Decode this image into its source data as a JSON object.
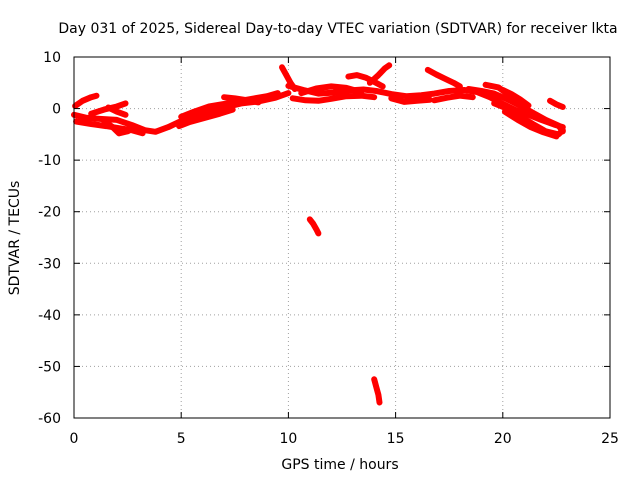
{
  "chart_data": {
    "type": "scatter",
    "title": "Day 031 of 2025, Sidereal Day-to-day VTEC variation (SDTVAR) for receiver lkta",
    "xlabel": "GPS time / hours",
    "ylabel": "SDTVAR / TECUs",
    "xlim": [
      0,
      25
    ],
    "ylim": [
      -60,
      10
    ],
    "xticks": [
      0,
      5,
      10,
      15,
      20,
      25
    ],
    "yticks": [
      10,
      0,
      -10,
      -20,
      -30,
      -40,
      -50,
      -60
    ],
    "grid": true,
    "series": [
      {
        "name": "SDTVAR",
        "color": "#ff0000",
        "tracks": [
          [
            [
              0.05,
              0.5
            ],
            [
              0.4,
              1.5
            ],
            [
              0.8,
              2.2
            ],
            [
              1.05,
              2.5
            ]
          ],
          [
            [
              0.0,
              -1.2
            ],
            [
              0.6,
              -1.8
            ],
            [
              1.2,
              -2.0
            ],
            [
              2.0,
              -2.2
            ],
            [
              2.7,
              -3.2
            ],
            [
              3.3,
              -4.2
            ],
            [
              3.8,
              -4.5
            ],
            [
              4.4,
              -3.6
            ],
            [
              4.9,
              -2.6
            ],
            [
              5.5,
              -1.6
            ],
            [
              6.2,
              -0.6
            ],
            [
              7.0,
              0.2
            ],
            [
              7.8,
              1.0
            ],
            [
              8.6,
              1.4
            ],
            [
              9.4,
              2.1
            ],
            [
              10.0,
              3.0
            ]
          ],
          [
            [
              0.1,
              -2.5
            ],
            [
              0.8,
              -3.0
            ],
            [
              1.5,
              -3.4
            ],
            [
              2.1,
              -3.8
            ],
            [
              2.7,
              -4.2
            ],
            [
              3.2,
              -4.8
            ]
          ],
          [
            [
              0.8,
              -1.0
            ],
            [
              1.4,
              -0.2
            ],
            [
              2.0,
              0.4
            ],
            [
              2.4,
              1.0
            ]
          ],
          [
            [
              1.4,
              -2.4
            ],
            [
              1.8,
              -3.6
            ],
            [
              2.1,
              -4.8
            ],
            [
              2.5,
              -4.4
            ],
            [
              2.9,
              -3.6
            ]
          ],
          [
            [
              1.6,
              0.2
            ],
            [
              2.0,
              -0.6
            ],
            [
              2.4,
              -1.2
            ]
          ],
          [
            [
              5.0,
              -1.6
            ],
            [
              5.6,
              -0.6
            ],
            [
              6.3,
              0.4
            ],
            [
              7.0,
              0.9
            ],
            [
              7.6,
              1.4
            ],
            [
              8.3,
              1.9
            ],
            [
              9.0,
              2.4
            ],
            [
              9.5,
              3.0
            ]
          ],
          [
            [
              4.9,
              -3.4
            ],
            [
              5.4,
              -2.6
            ],
            [
              6.1,
              -1.8
            ],
            [
              6.8,
              -1.0
            ],
            [
              7.4,
              -0.2
            ]
          ],
          [
            [
              7.0,
              2.2
            ],
            [
              7.5,
              2.0
            ],
            [
              8.1,
              1.6
            ],
            [
              8.6,
              1.2
            ]
          ],
          [
            [
              9.7,
              8.0
            ],
            [
              9.9,
              6.5
            ],
            [
              10.1,
              5.0
            ],
            [
              10.3,
              3.8
            ]
          ],
          [
            [
              10.0,
              4.4
            ],
            [
              10.7,
              3.6
            ],
            [
              11.4,
              2.9
            ],
            [
              12.1,
              3.1
            ],
            [
              12.8,
              3.5
            ],
            [
              13.5,
              3.7
            ],
            [
              14.1,
              3.4
            ],
            [
              14.8,
              2.8
            ],
            [
              15.5,
              2.4
            ],
            [
              16.2,
              2.6
            ],
            [
              16.8,
              2.9
            ],
            [
              17.5,
              3.4
            ],
            [
              18.2,
              3.6
            ],
            [
              18.8,
              3.2
            ],
            [
              19.4,
              2.2
            ],
            [
              20.0,
              0.9
            ],
            [
              20.6,
              -0.3
            ],
            [
              21.2,
              -1.2
            ],
            [
              21.8,
              -2.2
            ],
            [
              22.4,
              -3.1
            ],
            [
              22.8,
              -3.6
            ]
          ],
          [
            [
              10.2,
              2.0
            ],
            [
              10.8,
              1.6
            ],
            [
              11.4,
              1.5
            ],
            [
              12.0,
              1.9
            ],
            [
              12.7,
              2.4
            ],
            [
              13.4,
              2.5
            ],
            [
              14.0,
              2.2
            ]
          ],
          [
            [
              10.6,
              3.0
            ],
            [
              11.3,
              3.9
            ],
            [
              12.0,
              4.3
            ],
            [
              12.7,
              4.0
            ],
            [
              13.4,
              3.2
            ]
          ],
          [
            [
              12.8,
              6.2
            ],
            [
              13.2,
              6.5
            ],
            [
              13.6,
              6.0
            ],
            [
              14.0,
              5.2
            ],
            [
              14.4,
              4.3
            ]
          ],
          [
            [
              13.8,
              5.0
            ],
            [
              14.2,
              6.5
            ],
            [
              14.5,
              7.8
            ],
            [
              14.7,
              8.4
            ]
          ],
          [
            [
              14.8,
              2.0
            ],
            [
              15.4,
              1.3
            ],
            [
              16.0,
              1.5
            ],
            [
              16.6,
              1.7
            ]
          ],
          [
            [
              16.5,
              7.5
            ],
            [
              16.9,
              6.6
            ],
            [
              17.3,
              5.8
            ],
            [
              17.7,
              5.0
            ],
            [
              18.0,
              4.3
            ]
          ],
          [
            [
              16.8,
              1.6
            ],
            [
              17.4,
              2.1
            ],
            [
              18.0,
              2.5
            ],
            [
              18.6,
              2.2
            ]
          ],
          [
            [
              18.4,
              3.8
            ],
            [
              19.0,
              3.4
            ],
            [
              19.6,
              2.9
            ],
            [
              20.2,
              1.8
            ],
            [
              20.8,
              0.6
            ],
            [
              21.4,
              -0.8
            ],
            [
              22.0,
              -2.2
            ],
            [
              22.6,
              -3.3
            ],
            [
              22.8,
              -4.4
            ]
          ],
          [
            [
              19.2,
              4.6
            ],
            [
              19.8,
              4.1
            ],
            [
              20.2,
              2.9
            ],
            [
              20.6,
              1.6
            ]
          ],
          [
            [
              20.0,
              3.6
            ],
            [
              20.4,
              2.8
            ],
            [
              20.8,
              1.8
            ],
            [
              21.2,
              0.6
            ]
          ],
          [
            [
              19.6,
              1.0
            ],
            [
              20.2,
              0.0
            ],
            [
              20.8,
              -1.5
            ],
            [
              21.4,
              -3.0
            ],
            [
              22.0,
              -4.4
            ],
            [
              22.6,
              -5.0
            ],
            [
              22.8,
              -4.2
            ]
          ],
          [
            [
              20.1,
              -0.6
            ],
            [
              20.7,
              -2.2
            ],
            [
              21.3,
              -3.6
            ],
            [
              21.9,
              -4.6
            ],
            [
              22.5,
              -5.4
            ]
          ],
          [
            [
              22.2,
              1.5
            ],
            [
              22.5,
              0.8
            ],
            [
              22.8,
              0.3
            ]
          ],
          [
            [
              11.0,
              -21.5
            ],
            [
              11.15,
              -22.3
            ],
            [
              11.3,
              -23.4
            ],
            [
              11.4,
              -24.2
            ]
          ],
          [
            [
              14.0,
              -52.5
            ],
            [
              14.1,
              -54.0
            ],
            [
              14.2,
              -55.5
            ],
            [
              14.25,
              -57.0
            ]
          ]
        ]
      }
    ]
  }
}
